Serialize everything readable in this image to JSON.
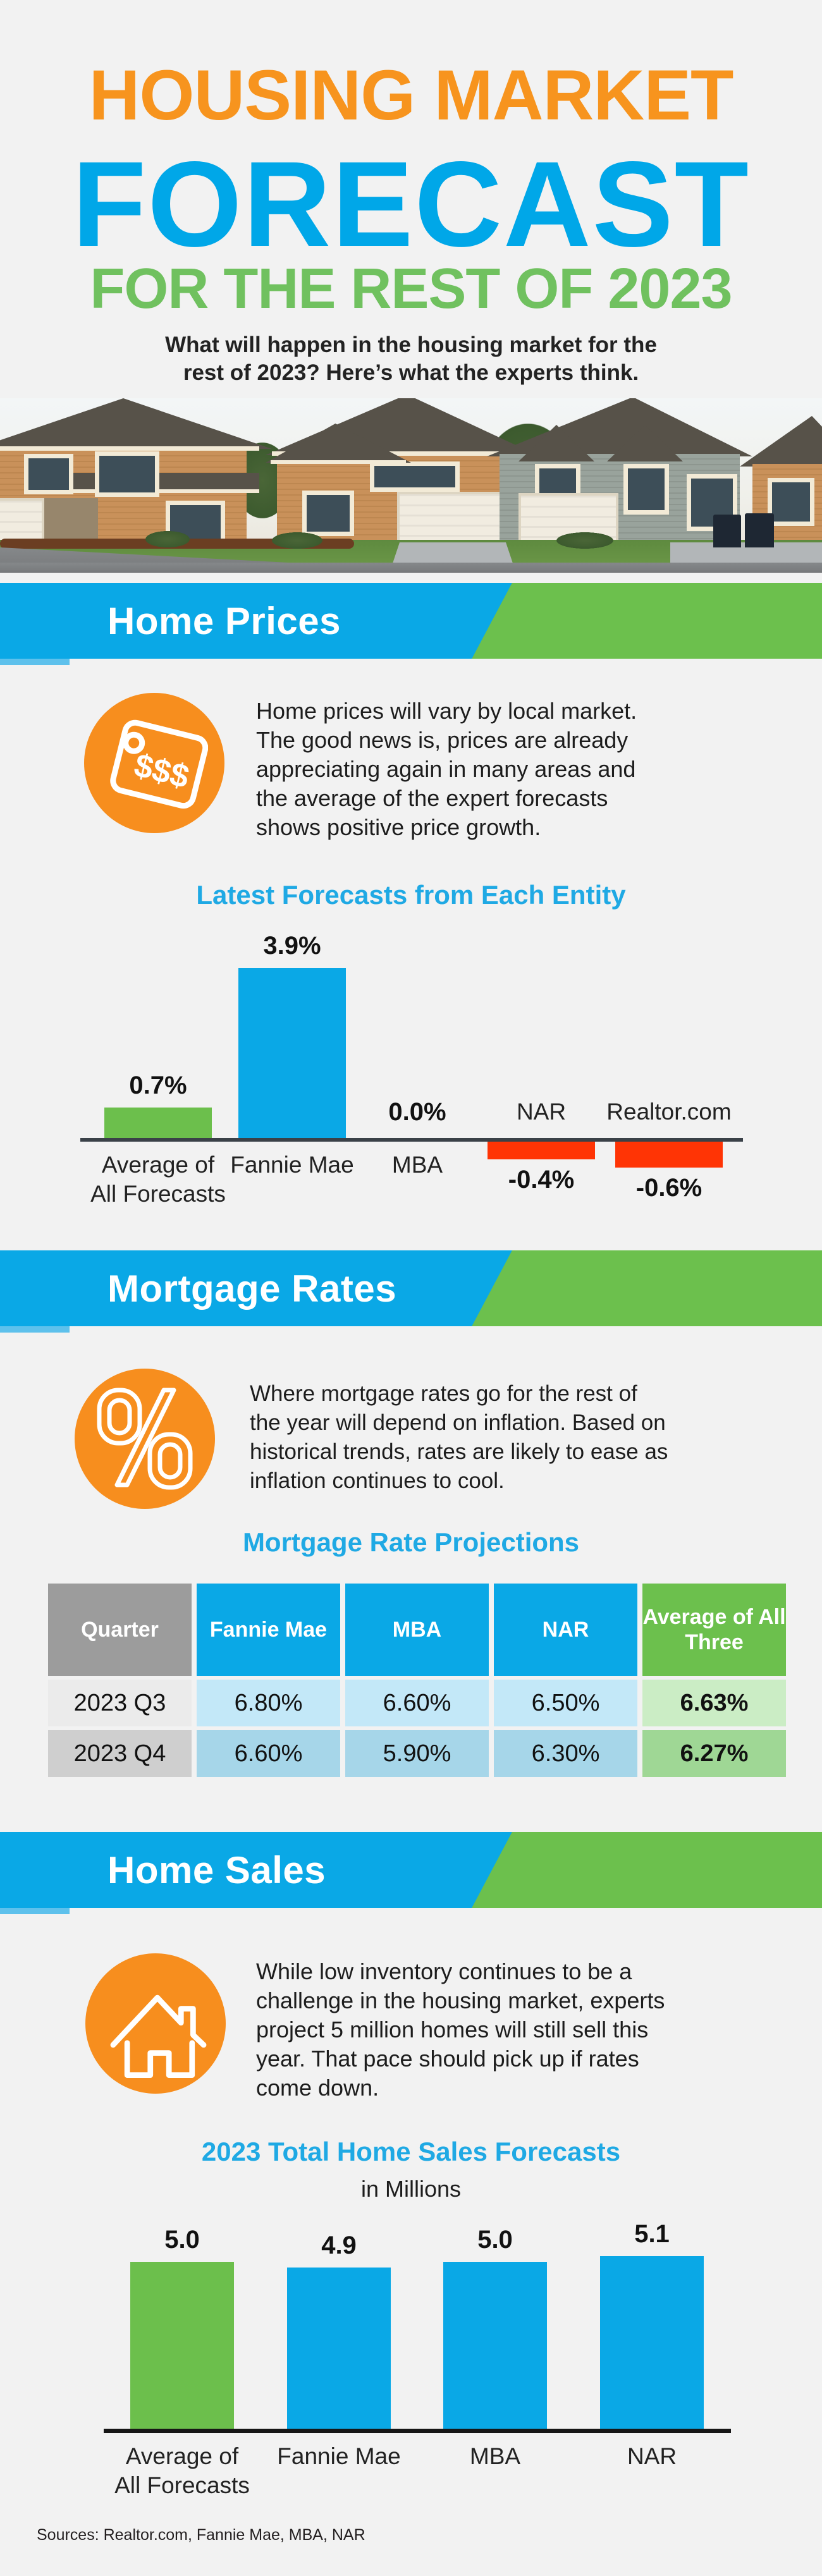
{
  "colors": {
    "orange": "#f7941e",
    "blue": "#0aa8e6",
    "green": "#6cc04d",
    "title_green": "#70c15f",
    "red": "#ff3405",
    "heading_blue": "#1fa9e4",
    "background": "#f2f2f2"
  },
  "header": {
    "title1": "HOUSING MARKET",
    "title2": "FORECAST",
    "title3": "FOR THE REST OF 2023",
    "subtitle": [
      "What will happen in the housing market for the",
      "rest of 2023? Here’s what the experts think."
    ]
  },
  "sections": {
    "home_prices": {
      "banner": "Home Prices",
      "icon": "price-tag-icon",
      "icon_text": "$$$",
      "paragraph": [
        "Home prices will vary by local market.",
        "The good news is, prices are already",
        "appreciating again in many areas and",
        "the average of the expert forecasts",
        "shows positive price growth."
      ],
      "heading": "Latest Forecasts from Each Entity"
    },
    "mortgage_rates": {
      "banner": "Mortgage Rates",
      "icon": "percent-icon",
      "paragraph": [
        "Where mortgage rates go for the rest of",
        "the year will depend on inflation. Based on",
        "historical trends, rates are likely to ease as",
        "inflation continues to cool."
      ],
      "heading": "Mortgage Rate Projections",
      "table": {
        "headers": [
          "Quarter",
          "Fannie Mae",
          "MBA",
          "NAR",
          "Average of All Three"
        ],
        "rows": [
          [
            "2023 Q3",
            "6.80%",
            "6.60%",
            "6.50%",
            "6.63%"
          ],
          [
            "2023 Q4",
            "6.60%",
            "5.90%",
            "6.30%",
            "6.27%"
          ]
        ]
      }
    },
    "home_sales": {
      "banner": "Home Sales",
      "icon": "house-icon",
      "paragraph": [
        "While low inventory continues to be a",
        "challenge in the housing market, experts",
        "project 5 million homes will still sell this",
        "year. That pace should pick up if rates",
        "come down."
      ],
      "heading": "2023 Total Home Sales Forecasts",
      "subheading": "in Millions"
    }
  },
  "chart_data": [
    {
      "type": "bar",
      "title": "Latest Forecasts from Each Entity",
      "categories": [
        "Average of\nAll Forecasts",
        "Fannie Mae",
        "MBA",
        "NAR",
        "Realtor.com"
      ],
      "values": [
        0.7,
        3.9,
        0.0,
        -0.4,
        -0.6
      ],
      "labels": [
        "0.7%",
        "3.9%",
        "0.0%",
        "-0.4%",
        "-0.6%"
      ],
      "bar_colors": [
        "#6cbf4c",
        "#0aa8e6",
        "#0aa8e6",
        "#ff3405",
        "#ff3405"
      ],
      "unit": "%",
      "ylim": [
        -0.8,
        4.2
      ],
      "grid": false,
      "legend": "none"
    },
    {
      "type": "bar",
      "title": "2023 Total Home Sales Forecasts",
      "subtitle": "in Millions",
      "categories": [
        "Average of\nAll Forecasts",
        "Fannie Mae",
        "MBA",
        "NAR"
      ],
      "values": [
        5.0,
        4.9,
        5.0,
        5.1
      ],
      "labels": [
        "5.0",
        "4.9",
        "5.0",
        "5.1"
      ],
      "bar_colors": [
        "#6cbf4c",
        "#0aa8e6",
        "#0aa8e6",
        "#0aa8e6"
      ],
      "unit": "millions of homes",
      "grid": false,
      "legend": "none"
    }
  ],
  "footer": {
    "sources": "Sources: Realtor.com, Fannie Mae, MBA, NAR"
  }
}
